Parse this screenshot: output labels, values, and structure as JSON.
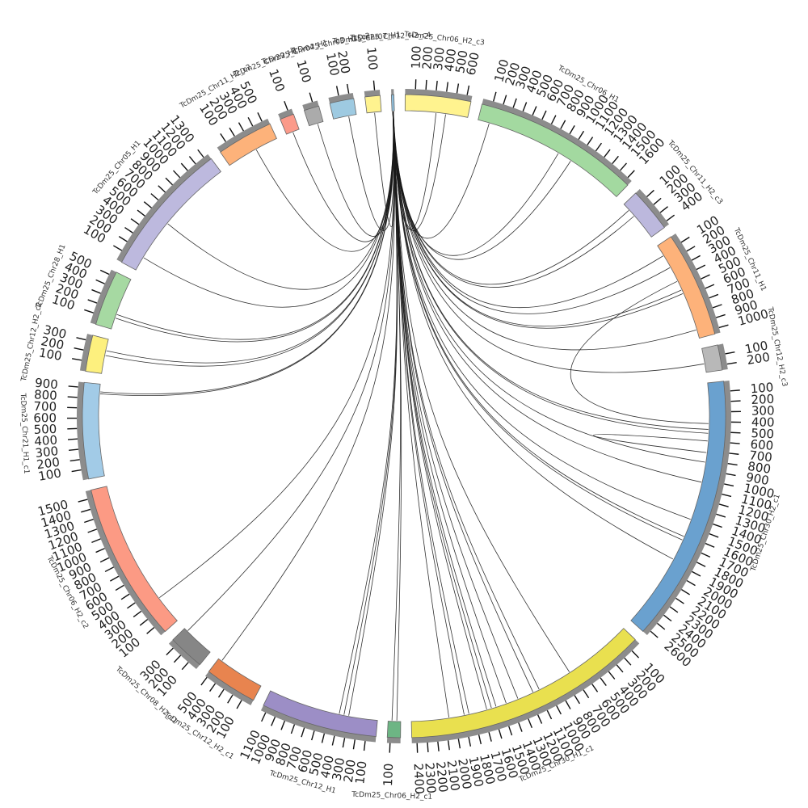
{
  "segments": [
    {
      "name": "TcDm25_Chr06_H2_c3",
      "length": 650,
      "color": "#fff38f",
      "ticks": [
        100,
        200,
        300,
        400,
        500,
        600
      ]
    },
    {
      "name": "TcDm25_Chr06_H1",
      "length": 1650,
      "color": "#a3d9a0",
      "ticks": [
        100,
        200,
        300,
        400,
        500,
        600,
        700,
        800,
        900,
        1000,
        1100,
        1200,
        1300,
        1400,
        1500,
        1600
      ]
    },
    {
      "name": "TcDm25_Chr11_H2_c3",
      "length": 440,
      "color": "#bcb8dd",
      "ticks": [
        100,
        200,
        300,
        400
      ]
    },
    {
      "name": "TcDm25_Chr11_H1",
      "length": 1050,
      "color": "#fdb27a",
      "ticks": [
        100,
        200,
        300,
        400,
        500,
        600,
        700,
        800,
        900,
        1000
      ]
    },
    {
      "name": "TcDm25_Chr12_H2_c3",
      "length": 250,
      "color": "#b8b8b8",
      "ticks": [
        100,
        200
      ]
    },
    {
      "name": "TcDm25_Chr30_H2_c1",
      "length": 2650,
      "color": "#6aa1cf",
      "ticks": [
        100,
        200,
        300,
        400,
        500,
        600,
        700,
        800,
        900,
        1000,
        1100,
        1200,
        1300,
        1400,
        1500,
        1600,
        1700,
        1800,
        1900,
        2000,
        2100,
        2200,
        2300,
        2400,
        2500,
        2600
      ]
    },
    {
      "name": "TcDm25_Chr30_H1_c1",
      "length": 2450,
      "color": "#e9e04f",
      "ticks": [
        100,
        200,
        300,
        400,
        500,
        600,
        700,
        800,
        900,
        1000,
        1100,
        1200,
        1300,
        1400,
        1500,
        1600,
        1700,
        1800,
        1900,
        2000,
        2100,
        2200,
        2300,
        2400
      ]
    },
    {
      "name": "TcDm25_Chr06_H2_c1",
      "length": 130,
      "color": "#6db584",
      "ticks": [
        100
      ]
    },
    {
      "name": "TcDm25_Chr12_H1",
      "length": 1150,
      "color": "#9c8ec6",
      "ticks": [
        100,
        200,
        300,
        400,
        500,
        600,
        700,
        800,
        900,
        1000,
        1100
      ]
    },
    {
      "name": "TcDm25_Chr12_H2_c1",
      "length": 520,
      "color": "#e8844f",
      "ticks": [
        100,
        200,
        300,
        400,
        500
      ]
    },
    {
      "name": "TcDm25_Chr08_H2_c1",
      "length": 360,
      "color": "#868686",
      "ticks": [
        100,
        200,
        300
      ]
    },
    {
      "name": "TcDm25_Chr06_H2_c2",
      "length": 1580,
      "color": "#fc9a84",
      "ticks": [
        100,
        200,
        300,
        400,
        500,
        600,
        700,
        800,
        900,
        1000,
        1100,
        1200,
        1300,
        1400,
        1500
      ]
    },
    {
      "name": "TcDm25_Chr21_H1_c1",
      "length": 950,
      "color": "#a2cbe7",
      "ticks": [
        100,
        200,
        300,
        400,
        500,
        600,
        700,
        800,
        900
      ]
    },
    {
      "name": "TcDm25_Chr12_H2_c2",
      "length": 360,
      "color": "#fdf07e",
      "ticks": [
        100,
        200,
        300
      ]
    },
    {
      "name": "TcDm25_Chr28_H1",
      "length": 550,
      "color": "#a6d9a2",
      "ticks": [
        100,
        200,
        300,
        400,
        500
      ]
    },
    {
      "name": "TcDm25_Chr05_H1",
      "length": 1350,
      "color": "#bdb9de",
      "ticks": [
        100,
        200,
        300,
        400,
        500,
        600,
        700,
        800,
        900,
        1000,
        1100,
        1200,
        1300
      ]
    },
    {
      "name": "TcDm25_Chr11_H2_c2",
      "length": 560,
      "color": "#fdb27a",
      "ticks": [
        100,
        200,
        300,
        400,
        500
      ]
    },
    {
      "name": "TcDm25_Chr29_H1",
      "length": 140,
      "color": "#fb9a8a",
      "ticks": [
        100
      ]
    },
    {
      "name": "TcDm25_Chr04_H1",
      "length": 150,
      "color": "#ababab",
      "ticks": [
        100
      ]
    },
    {
      "name": "TcDm25_Chr03_H1_c2",
      "length": 240,
      "color": "#9ecae1",
      "ticks": [
        100,
        200
      ]
    },
    {
      "name": "TcDm25_Chr07_H1",
      "length": 150,
      "color": "#fff38f",
      "ticks": [
        100
      ]
    },
    {
      "name": "TcDm25_Chr12_H2_c4",
      "length": 25,
      "color": "#8fc0de",
      "ticks": []
    }
  ],
  "links": [
    {
      "source": [
        0,
        320
      ],
      "target": [
        21,
        10
      ]
    },
    {
      "source": [
        0,
        420
      ],
      "target": [
        21,
        12
      ]
    },
    {
      "source": [
        1,
        120
      ],
      "target": [
        21,
        14
      ]
    },
    {
      "source": [
        1,
        900
      ],
      "target": [
        21,
        9
      ]
    },
    {
      "source": [
        1,
        1050
      ],
      "target": [
        21,
        11
      ]
    },
    {
      "source": [
        2,
        80
      ],
      "target": [
        21,
        13
      ]
    },
    {
      "source": [
        2,
        160
      ],
      "target": [
        21,
        8
      ]
    },
    {
      "source": [
        3,
        120
      ],
      "target": [
        21,
        15
      ]
    },
    {
      "source": [
        3,
        260
      ],
      "target": [
        21,
        12
      ]
    },
    {
      "source": [
        3,
        520
      ],
      "target": [
        21,
        10
      ]
    },
    {
      "source": [
        3,
        560
      ],
      "target": [
        21,
        11
      ]
    },
    {
      "source": [
        3,
        960
      ],
      "target": [
        21,
        9
      ]
    },
    {
      "source": [
        4,
        160
      ],
      "target": [
        21,
        13
      ]
    },
    {
      "source": [
        5,
        480
      ],
      "target": [
        21,
        12
      ]
    },
    {
      "source": [
        5,
        520
      ],
      "target": [
        21,
        11
      ]
    },
    {
      "source": [
        5,
        820
      ],
      "target": [
        21,
        10
      ]
    },
    {
      "source": [
        5,
        1030
      ],
      "target": [
        21,
        14
      ]
    },
    {
      "source": [
        5,
        1430
      ],
      "target": [
        21,
        9
      ]
    },
    {
      "source": [
        5,
        1620
      ],
      "target": [
        21,
        13
      ]
    },
    {
      "source": [
        5,
        1660
      ],
      "target": [
        21,
        8
      ]
    },
    {
      "source": [
        5,
        1880
      ],
      "target": [
        21,
        12
      ]
    },
    {
      "source": [
        6,
        720
      ],
      "target": [
        21,
        11
      ]
    },
    {
      "source": [
        6,
        1080
      ],
      "target": [
        21,
        10
      ]
    },
    {
      "source": [
        6,
        1150
      ],
      "target": [
        21,
        12
      ]
    },
    {
      "source": [
        6,
        1320
      ],
      "target": [
        21,
        9
      ]
    },
    {
      "source": [
        6,
        1450
      ],
      "target": [
        21,
        14
      ]
    },
    {
      "source": [
        6,
        1560
      ],
      "target": [
        21,
        13
      ]
    },
    {
      "source": [
        6,
        1610
      ],
      "target": [
        21,
        11
      ]
    },
    {
      "source": [
        6,
        1660
      ],
      "target": [
        21,
        8
      ]
    },
    {
      "source": [
        6,
        1850
      ],
      "target": [
        21,
        12
      ]
    },
    {
      "source": [
        6,
        1900
      ],
      "target": [
        21,
        10
      ]
    },
    {
      "source": [
        6,
        2060
      ],
      "target": [
        21,
        9
      ]
    },
    {
      "source": [
        7,
        40
      ],
      "target": [
        21,
        11
      ]
    },
    {
      "source": [
        7,
        90
      ],
      "target": [
        21,
        13
      ]
    },
    {
      "source": [
        8,
        300
      ],
      "target": [
        21,
        10
      ]
    },
    {
      "source": [
        8,
        350
      ],
      "target": [
        21,
        12
      ]
    },
    {
      "source": [
        8,
        400
      ],
      "target": [
        21,
        8
      ]
    },
    {
      "source": [
        9,
        480
      ],
      "target": [
        21,
        11
      ]
    },
    {
      "source": [
        10,
        320
      ],
      "target": [
        21,
        9
      ]
    },
    {
      "source": [
        11,
        300
      ],
      "target": [
        21,
        12
      ]
    },
    {
      "source": [
        12,
        850
      ],
      "target": [
        21,
        14
      ]
    },
    {
      "source": [
        12,
        870
      ],
      "target": [
        21,
        10
      ]
    },
    {
      "source": [
        13,
        190
      ],
      "target": [
        21,
        11
      ]
    },
    {
      "source": [
        13,
        240
      ],
      "target": [
        21,
        13
      ]
    },
    {
      "source": [
        14,
        120
      ],
      "target": [
        21,
        12
      ]
    },
    {
      "source": [
        14,
        160
      ],
      "target": [
        21,
        9
      ]
    },
    {
      "source": [
        15,
        580
      ],
      "target": [
        21,
        10
      ]
    },
    {
      "source": [
        15,
        150
      ],
      "target": [
        21,
        11
      ]
    },
    {
      "source": [
        16,
        320
      ],
      "target": [
        21,
        12
      ]
    },
    {
      "source": [
        17,
        70
      ],
      "target": [
        21,
        14
      ]
    },
    {
      "source": [
        18,
        90
      ],
      "target": [
        21,
        9
      ]
    },
    {
      "source": [
        19,
        160
      ],
      "target": [
        21,
        10
      ]
    },
    {
      "source": [
        20,
        80
      ],
      "target": [
        21,
        12
      ]
    },
    {
      "source": [
        3,
        420
      ],
      "target": [
        5,
        420
      ]
    },
    {
      "source": [
        5,
        600
      ],
      "target": [
        5,
        720
      ]
    }
  ]
}
